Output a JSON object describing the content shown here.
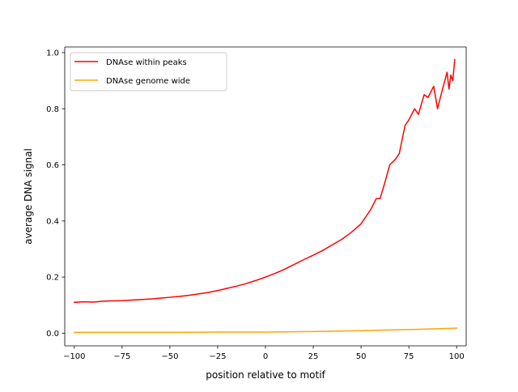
{
  "chart_data": {
    "type": "line",
    "title": "",
    "xlabel": "position relative to motif",
    "ylabel": "average DNA signal",
    "xlim": [
      -105,
      105
    ],
    "ylim": [
      -0.045,
      1.02
    ],
    "xticks": [
      -100,
      -75,
      -50,
      -25,
      0,
      25,
      50,
      75,
      100
    ],
    "xtick_labels": [
      "−100",
      "−75",
      "−50",
      "−25",
      "0",
      "25",
      "50",
      "75",
      "100"
    ],
    "yticks": [
      0.0,
      0.2,
      0.4,
      0.6,
      0.8,
      1.0
    ],
    "ytick_labels": [
      "0.0",
      "0.2",
      "0.4",
      "0.6",
      "0.8",
      "1.0"
    ],
    "grid": false,
    "legend_position": "top-left",
    "series": [
      {
        "name": "DNAse within peaks",
        "color": "#ff0000",
        "x": [
          -100,
          -95,
          -90,
          -85,
          -80,
          -75,
          -70,
          -65,
          -60,
          -55,
          -50,
          -45,
          -40,
          -35,
          -30,
          -25,
          -20,
          -15,
          -10,
          -5,
          0,
          5,
          10,
          15,
          20,
          25,
          30,
          35,
          40,
          45,
          50,
          53,
          55,
          58,
          60,
          63,
          65,
          68,
          70,
          73,
          75,
          78,
          80,
          83,
          85,
          88,
          90,
          93,
          95,
          96,
          97,
          98,
          99
        ],
        "values": [
          0.11,
          0.112,
          0.111,
          0.114,
          0.115,
          0.116,
          0.118,
          0.12,
          0.122,
          0.125,
          0.128,
          0.131,
          0.135,
          0.14,
          0.145,
          0.152,
          0.16,
          0.168,
          0.177,
          0.188,
          0.2,
          0.213,
          0.228,
          0.245,
          0.262,
          0.278,
          0.295,
          0.315,
          0.335,
          0.36,
          0.39,
          0.42,
          0.44,
          0.48,
          0.48,
          0.55,
          0.6,
          0.62,
          0.64,
          0.74,
          0.76,
          0.8,
          0.78,
          0.85,
          0.84,
          0.88,
          0.8,
          0.88,
          0.93,
          0.87,
          0.92,
          0.9,
          0.975
        ]
      },
      {
        "name": "DNAse genome wide",
        "color": "#ffa500",
        "x": [
          -100,
          -75,
          -50,
          -25,
          0,
          25,
          50,
          60,
          75,
          100
        ],
        "values": [
          0.003,
          0.003,
          0.003,
          0.004,
          0.004,
          0.006,
          0.009,
          0.011,
          0.013,
          0.018
        ]
      }
    ]
  }
}
